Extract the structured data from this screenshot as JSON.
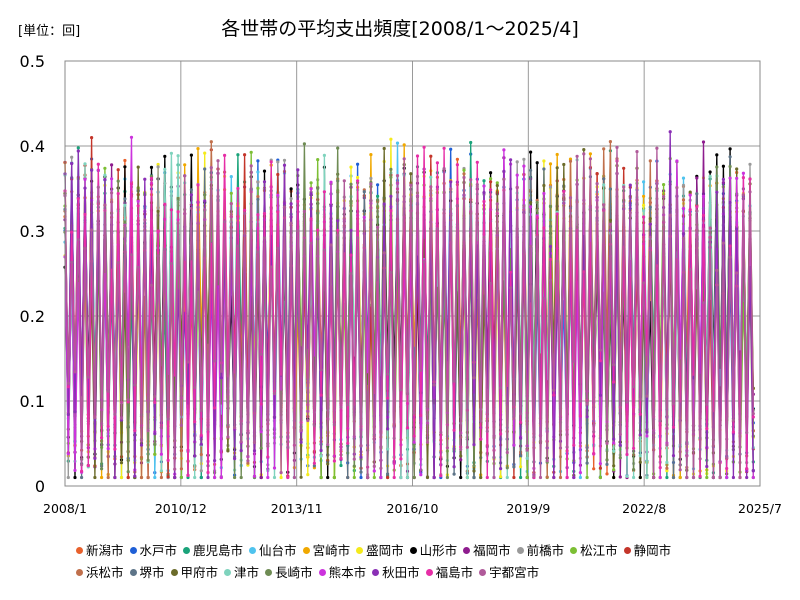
{
  "chart_data": {
    "type": "line",
    "title": "各世帯の平均支出頻度[2008/1～2025/4]",
    "unit_label": "[単位：回]",
    "x_start": "2008/1",
    "x_end": "2025/4",
    "x_ticks": [
      "2008/1",
      "2010/12",
      "2013/11",
      "2016/10",
      "2019/9",
      "2022/8",
      "2025/7"
    ],
    "y_ticks": [
      "0",
      "0.1",
      "0.2",
      "0.3",
      "0.4",
      "0.5"
    ],
    "ylim": [
      0,
      0.5
    ],
    "grid": true,
    "legend_position": "bottom",
    "series": [
      {
        "name": "新潟市",
        "color": "#e8612c"
      },
      {
        "name": "水戸市",
        "color": "#1f5fd6"
      },
      {
        "name": "鹿児島市",
        "color": "#1aa37a"
      },
      {
        "name": "仙台市",
        "color": "#4fc3ee"
      },
      {
        "name": "宮崎市",
        "color": "#f0a800"
      },
      {
        "name": "盛岡市",
        "color": "#f4ea1c"
      },
      {
        "name": "山形市",
        "color": "#000000"
      },
      {
        "name": "福岡市",
        "color": "#8e1c8e"
      },
      {
        "name": "前橋市",
        "color": "#9a9a9a"
      },
      {
        "name": "松江市",
        "color": "#7cbf34"
      },
      {
        "name": "静岡市",
        "color": "#c4352a"
      },
      {
        "name": "浜松市",
        "color": "#c0704c"
      },
      {
        "name": "堺市",
        "color": "#5d7488"
      },
      {
        "name": "甲府市",
        "color": "#6b6b2a"
      },
      {
        "name": "津市",
        "color": "#7fd3bd"
      },
      {
        "name": "長崎市",
        "color": "#6f8c54"
      },
      {
        "name": "熊本市",
        "color": "#cc33dd"
      },
      {
        "name": "秋田市",
        "color": "#8a2fb5"
      },
      {
        "name": "福島市",
        "color": "#e62ea6"
      },
      {
        "name": "宇都宮市",
        "color": "#b05a9a"
      }
    ]
  }
}
